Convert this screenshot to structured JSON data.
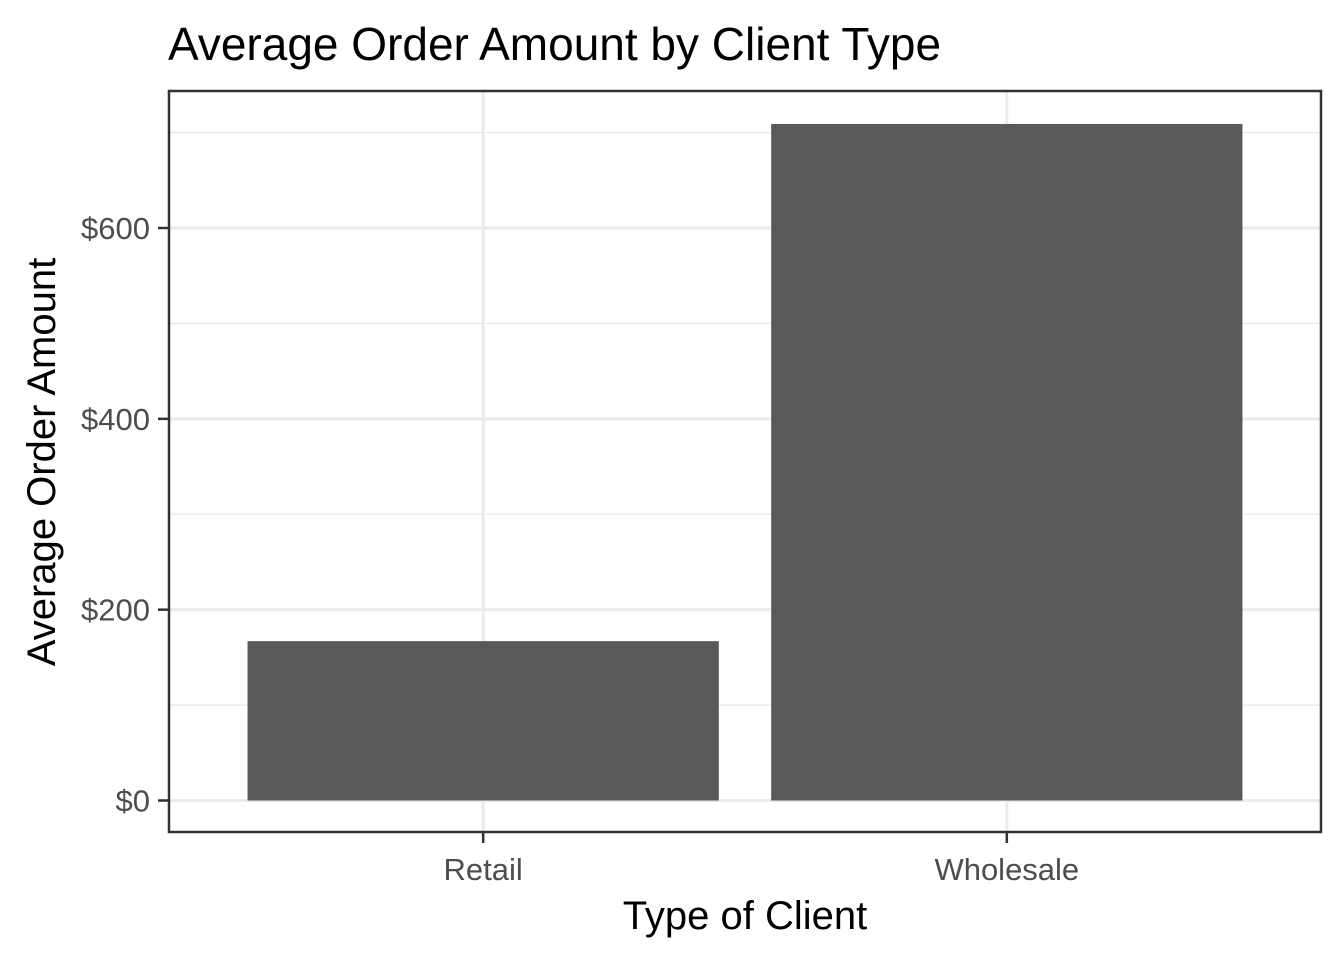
{
  "chart_data": {
    "type": "bar",
    "title": "Average Order Amount by Client Type",
    "xlabel": "Type of Client",
    "ylabel": "Average Order Amount",
    "categories": [
      "Retail",
      "Wholesale"
    ],
    "values": [
      167,
      709
    ],
    "ylim": [
      -35,
      745
    ],
    "yticks": [
      0,
      200,
      400,
      600
    ],
    "ytick_labels": [
      "$0",
      "$200",
      "$400",
      "$600"
    ],
    "grid": true,
    "bar_color": "#595959"
  }
}
